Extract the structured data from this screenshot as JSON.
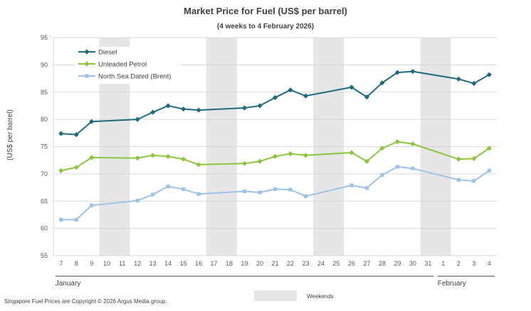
{
  "chart_data": {
    "type": "line",
    "title": "Market Price for Fuel (US$ per barrel)",
    "subtitle": "(4 weeks to 4 February 2026)",
    "xlabel": "",
    "ylabel": "(US$ per barrel)",
    "ylim": [
      55,
      95
    ],
    "yticks": [
      55,
      60,
      65,
      70,
      75,
      80,
      85,
      90,
      95
    ],
    "grid": true,
    "legend_position": "top-left",
    "categories": [
      "7",
      "8",
      "9",
      "10",
      "11",
      "12",
      "13",
      "14",
      "15",
      "16",
      "17",
      "18",
      "19",
      "20",
      "21",
      "22",
      "23",
      "24",
      "25",
      "26",
      "27",
      "28",
      "29",
      "30",
      "31",
      "1",
      "2",
      "3",
      "4"
    ],
    "months": [
      {
        "label": "January",
        "start": "7",
        "end": "31"
      },
      {
        "label": "February",
        "start": "1",
        "end": "4"
      }
    ],
    "weekends": [
      {
        "start": "10",
        "end": "11"
      },
      {
        "start": "17",
        "end": "18"
      },
      {
        "start": "24",
        "end": "25"
      },
      {
        "start": "31",
        "end": "1"
      }
    ],
    "series": [
      {
        "name": "Diesel",
        "color": "#1f6b7e",
        "marker": "diamond",
        "values": [
          77.4,
          77.2,
          79.6,
          null,
          null,
          80.0,
          81.3,
          82.5,
          81.9,
          81.7,
          null,
          null,
          82.1,
          82.5,
          84.0,
          85.4,
          84.3,
          null,
          null,
          85.9,
          84.1,
          86.7,
          88.6,
          88.8,
          null,
          null,
          87.4,
          86.6,
          88.2
        ]
      },
      {
        "name": "Unleaded Petrol",
        "color": "#8cc63f",
        "marker": "diamond",
        "values": [
          70.6,
          71.2,
          73.0,
          null,
          null,
          72.9,
          73.4,
          73.2,
          72.7,
          71.7,
          null,
          null,
          71.9,
          72.3,
          73.2,
          73.7,
          73.4,
          null,
          null,
          73.9,
          72.3,
          74.7,
          75.9,
          75.5,
          null,
          null,
          72.7,
          72.8,
          74.7
        ]
      },
      {
        "name": "North Sea Dated (Brent)",
        "color": "#9dc3e6",
        "marker": "square",
        "values": [
          61.6,
          61.6,
          64.2,
          null,
          null,
          65.1,
          66.2,
          67.7,
          67.2,
          66.3,
          null,
          null,
          66.8,
          66.6,
          67.2,
          67.1,
          65.9,
          null,
          null,
          67.9,
          67.4,
          69.8,
          71.3,
          71.0,
          null,
          null,
          68.9,
          68.7,
          70.6
        ]
      }
    ],
    "weekends_label": "Weekends",
    "footnote": "Singapore  Fuel Prices  are Copyright  © 2026  Argus  Media group."
  }
}
